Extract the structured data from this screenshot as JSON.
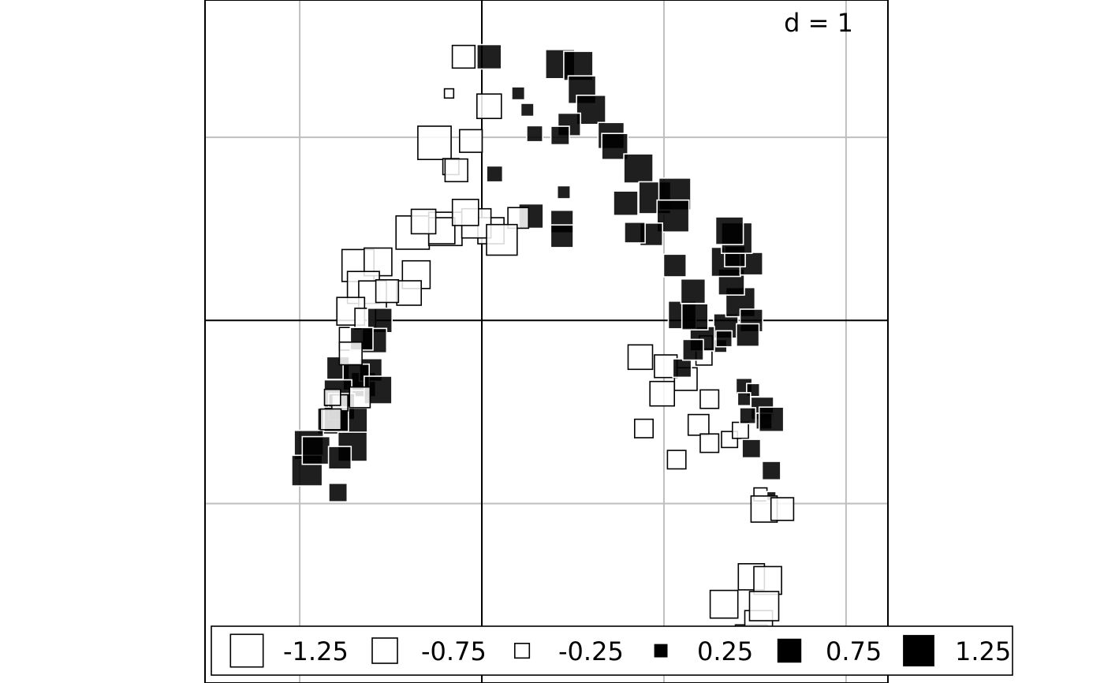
{
  "chart_data": {
    "type": "scatter",
    "title": "",
    "xlabel": "",
    "ylabel": "",
    "grid": true,
    "grid_label": "d = 1",
    "xlim": [
      -1.52,
      2.23
    ],
    "ylim": [
      -1.98,
      1.75
    ],
    "grid_spacing": 1,
    "legend_position": "bottom",
    "legend": [
      -1.25,
      -0.75,
      -0.25,
      0.25,
      0.75,
      1.25
    ],
    "colors": {
      "positive": "#000000",
      "negative": "#ffffff",
      "edge": "#000000",
      "grid": "#bebebe",
      "axis": "#000000"
    },
    "points": [
      [
        -0.1,
        1.44,
        -0.6
      ],
      [
        0.04,
        1.44,
        0.7
      ],
      [
        0.43,
        1.4,
        1.0
      ],
      [
        0.53,
        1.39,
        1.0
      ],
      [
        0.55,
        1.26,
        0.9
      ],
      [
        0.6,
        1.15,
        1.0
      ],
      [
        0.48,
        1.07,
        0.6
      ],
      [
        0.71,
        1.01,
        0.8
      ],
      [
        0.73,
        0.95,
        0.8
      ],
      [
        0.86,
        0.83,
        1.0
      ],
      [
        0.95,
        0.67,
        1.2
      ],
      [
        1.06,
        0.69,
        1.2
      ],
      [
        1.05,
        0.57,
        1.2
      ],
      [
        0.79,
        0.64,
        0.7
      ],
      [
        0.27,
        0.57,
        0.7
      ],
      [
        0.44,
        0.54,
        0.6
      ],
      [
        0.04,
        1.17,
        -0.7
      ],
      [
        -0.26,
        0.97,
        -1.3
      ],
      [
        -0.06,
        0.98,
        -0.6
      ],
      [
        0.2,
        0.56,
        -0.5
      ],
      [
        0.2,
        1.24,
        0.2
      ],
      [
        0.07,
        0.8,
        0.3
      ],
      [
        0.29,
        1.02,
        0.3
      ],
      [
        0.43,
        1.01,
        0.4
      ],
      [
        0.25,
        1.15,
        0.2
      ],
      [
        0.45,
        0.7,
        0.2
      ],
      [
        0.44,
        0.46,
        0.6
      ],
      [
        -0.18,
        1.24,
        -0.1
      ],
      [
        -0.17,
        0.84,
        -0.3
      ],
      [
        -0.14,
        0.82,
        -0.6
      ],
      [
        -0.38,
        0.48,
        -1.3
      ],
      [
        -0.2,
        0.5,
        -1.3
      ],
      [
        -0.22,
        0.49,
        -0.8
      ],
      [
        0.05,
        0.49,
        -0.8
      ],
      [
        -0.03,
        0.53,
        -1.0
      ],
      [
        -0.09,
        0.59,
        -0.8
      ],
      [
        0.11,
        0.44,
        -1.1
      ],
      [
        -0.32,
        0.54,
        -0.7
      ],
      [
        -0.68,
        0.3,
        -1.2
      ],
      [
        -0.57,
        0.32,
        -0.9
      ],
      [
        -0.36,
        0.25,
        -0.9
      ],
      [
        -0.4,
        0.15,
        -0.7
      ],
      [
        -0.65,
        0.18,
        -1.2
      ],
      [
        -0.6,
        0.14,
        -0.9
      ],
      [
        -0.52,
        0.16,
        -0.6
      ],
      [
        -0.72,
        0.05,
        -0.9
      ],
      [
        -0.72,
        -0.1,
        -0.6
      ],
      [
        -0.64,
        0.01,
        -0.5
      ],
      [
        -0.56,
        -0.0,
        0.7
      ],
      [
        -0.59,
        -0.11,
        0.7
      ],
      [
        -0.66,
        -0.1,
        0.6
      ],
      [
        -0.65,
        -0.35,
        0.7
      ],
      [
        -0.79,
        -0.26,
        0.6
      ],
      [
        -0.61,
        -0.27,
        0.6
      ],
      [
        -0.69,
        -0.31,
        0.8
      ],
      [
        -0.79,
        -0.4,
        0.9
      ],
      [
        -0.83,
        -0.55,
        0.8
      ],
      [
        -0.77,
        -0.47,
        0.8
      ],
      [
        -0.57,
        -0.38,
        0.9
      ],
      [
        -0.7,
        -0.55,
        0.8
      ],
      [
        -0.8,
        -0.54,
        0.7
      ],
      [
        -0.71,
        -0.69,
        1.0
      ],
      [
        -0.95,
        -0.68,
        1.0
      ],
      [
        -0.96,
        -0.82,
        1.1
      ],
      [
        -0.91,
        -0.71,
        0.9
      ],
      [
        -0.78,
        -0.75,
        0.6
      ],
      [
        -0.79,
        -0.94,
        0.4
      ],
      [
        -0.78,
        -0.45,
        -0.3
      ],
      [
        -0.67,
        -0.42,
        -0.5
      ],
      [
        -0.72,
        -0.18,
        -0.6
      ],
      [
        -0.83,
        -0.54,
        -0.5
      ],
      [
        -0.82,
        -0.42,
        -0.3
      ],
      [
        1.19,
        -0.57,
        -0.5
      ],
      [
        1.25,
        -0.43,
        -0.4
      ],
      [
        1.25,
        -0.67,
        -0.4
      ],
      [
        1.36,
        -0.65,
        -0.3
      ],
      [
        1.42,
        -0.6,
        -0.3
      ],
      [
        1.07,
        -0.76,
        -0.4
      ],
      [
        0.89,
        -0.59,
        -0.4
      ],
      [
        0.99,
        -0.4,
        -0.7
      ],
      [
        1.12,
        -0.32,
        -0.6
      ],
      [
        1.01,
        -0.25,
        -0.6
      ],
      [
        0.87,
        -0.2,
        -0.7
      ],
      [
        1.22,
        -0.2,
        -0.3
      ],
      [
        1.23,
        -0.12,
        -0.2
      ],
      [
        1.31,
        -0.14,
        0.2
      ],
      [
        1.44,
        -0.36,
        0.3
      ],
      [
        1.49,
        -0.38,
        0.2
      ],
      [
        1.54,
        -0.48,
        0.6
      ],
      [
        1.44,
        -0.43,
        0.2
      ],
      [
        1.46,
        -0.52,
        0.3
      ],
      [
        1.55,
        -0.55,
        0.3
      ],
      [
        1.59,
        -0.54,
        0.7
      ],
      [
        1.48,
        -0.7,
        0.4
      ],
      [
        1.59,
        -0.82,
        0.4
      ],
      [
        1.53,
        -0.95,
        -0.2
      ],
      [
        1.59,
        -0.96,
        0.1
      ],
      [
        1.55,
        -1.03,
        -0.8
      ],
      [
        1.65,
        -1.03,
        -0.6
      ],
      [
        1.48,
        -1.4,
        -0.8
      ],
      [
        1.57,
        -1.42,
        -0.9
      ],
      [
        1.48,
        -1.75,
        -1.2
      ],
      [
        1.52,
        -1.66,
        -0.9
      ],
      [
        1.66,
        -1.8,
        -1.0
      ],
      [
        1.37,
        -1.78,
        -1.2
      ],
      [
        1.33,
        -1.55,
        -0.9
      ],
      [
        1.55,
        -1.56,
        -1.0
      ],
      [
        1.45,
        -1.8,
        -0.8
      ],
      [
        1.34,
        -0.03,
        0.7
      ],
      [
        1.42,
        0.1,
        1.0
      ],
      [
        1.37,
        0.21,
        0.8
      ],
      [
        1.34,
        0.32,
        1.0
      ],
      [
        1.48,
        0.31,
        0.6
      ],
      [
        1.39,
        0.35,
        0.5
      ],
      [
        1.48,
        0.0,
        0.6
      ],
      [
        1.46,
        -0.08,
        0.6
      ],
      [
        1.33,
        -0.1,
        0.3
      ],
      [
        1.21,
        -0.1,
        0.7
      ],
      [
        1.1,
        -0.26,
        0.4
      ],
      [
        1.16,
        -0.16,
        0.5
      ],
      [
        1.1,
        0.03,
        0.9
      ],
      [
        1.17,
        0.02,
        0.8
      ],
      [
        1.16,
        0.16,
        0.7
      ],
      [
        1.06,
        0.3,
        0.6
      ],
      [
        1.4,
        0.45,
        1.1
      ],
      [
        1.36,
        0.49,
        0.9
      ],
      [
        0.93,
        0.47,
        0.6
      ],
      [
        0.84,
        0.48,
        0.5
      ]
    ]
  }
}
